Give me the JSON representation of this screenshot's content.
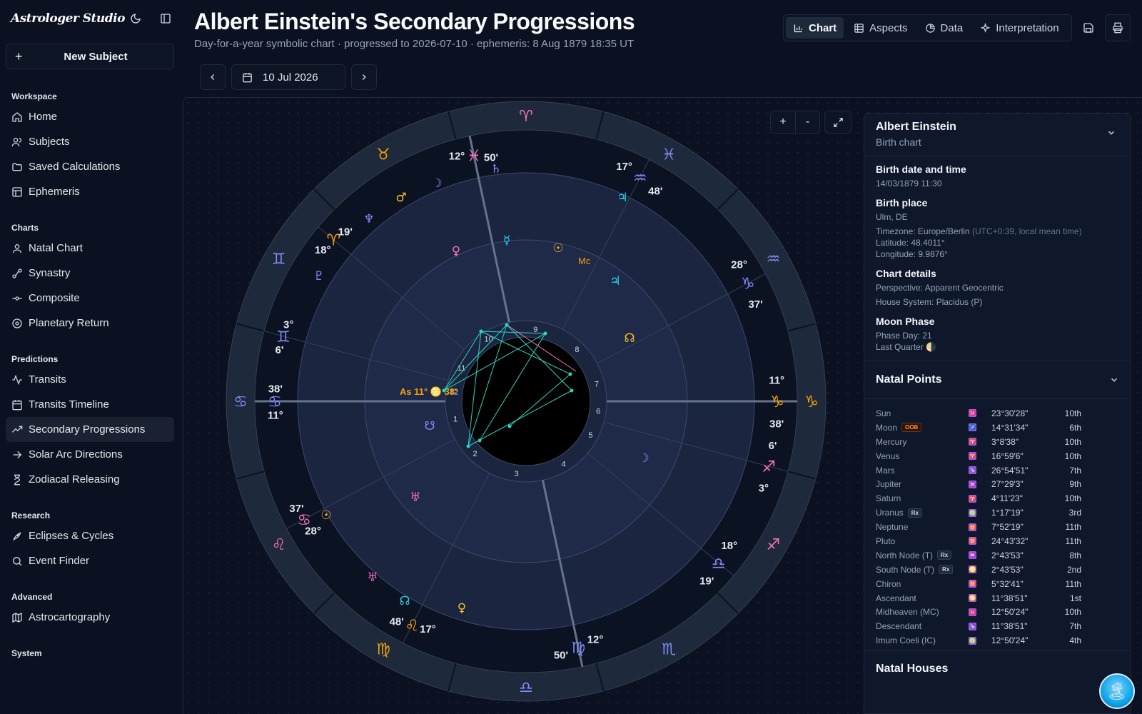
{
  "app": {
    "brand": "Astrologer Studio",
    "new_subject": "New Subject"
  },
  "sidebar": {
    "sections": [
      {
        "title": "Workspace",
        "items": [
          {
            "label": "Home",
            "icon": "home-icon"
          },
          {
            "label": "Subjects",
            "icon": "users-icon"
          },
          {
            "label": "Saved Calculations",
            "icon": "folder-icon"
          },
          {
            "label": "Ephemeris",
            "icon": "table-icon"
          }
        ]
      },
      {
        "title": "Charts",
        "items": [
          {
            "label": "Natal Chart",
            "icon": "user-icon"
          },
          {
            "label": "Synastry",
            "icon": "link-icon"
          },
          {
            "label": "Composite",
            "icon": "merge-icon"
          },
          {
            "label": "Planetary Return",
            "icon": "orbit-icon"
          }
        ]
      },
      {
        "title": "Predictions",
        "items": [
          {
            "label": "Transits",
            "icon": "activity-icon"
          },
          {
            "label": "Transits Timeline",
            "icon": "calendar-icon"
          },
          {
            "label": "Secondary Progressions",
            "icon": "trend-icon",
            "active": true
          },
          {
            "label": "Solar Arc Directions",
            "icon": "arrow-right-icon"
          },
          {
            "label": "Zodiacal Releasing",
            "icon": "hourglass-icon"
          }
        ]
      },
      {
        "title": "Research",
        "items": [
          {
            "label": "Eclipses & Cycles",
            "icon": "rocket-icon"
          },
          {
            "label": "Event Finder",
            "icon": "search-icon"
          }
        ]
      },
      {
        "title": "Advanced",
        "items": [
          {
            "label": "Astrocartography",
            "icon": "map-icon"
          }
        ]
      },
      {
        "title": "System",
        "items": []
      }
    ]
  },
  "header": {
    "title": "Albert Einstein's Secondary Progressions",
    "subtitle": "Day-for-a-year symbolic chart · progressed to 2026-07-10 · ephemeris: 8 Aug 1879 18:35 UT",
    "tabs": [
      {
        "label": "Chart",
        "icon": "bar-chart-icon",
        "active": true
      },
      {
        "label": "Aspects",
        "icon": "grid-icon"
      },
      {
        "label": "Data",
        "icon": "pie-icon"
      },
      {
        "label": "Interpretation",
        "icon": "sparkle-icon"
      }
    ]
  },
  "date_nav": {
    "date": "10 Jul 2026"
  },
  "zoom": {
    "plus": "+",
    "minus": "-"
  },
  "wheel": {
    "zodiac_glyphs": [
      "♈",
      "♉",
      "♊",
      "♋",
      "♌",
      "♍",
      "♎",
      "♏",
      "♐",
      "♑",
      "♒",
      "♓"
    ],
    "cusp_labels": [
      {
        "deg": "11°",
        "sign": "♋",
        "min": "38'"
      },
      {
        "deg": "28°",
        "sign": "♋",
        "min": "37'"
      },
      {
        "deg": "17°",
        "sign": "♌",
        "min": "48'"
      },
      {
        "deg": "12°",
        "sign": "♍",
        "min": "50'"
      },
      {
        "deg": "18°",
        "sign": "♎",
        "min": "19'"
      },
      {
        "deg": "6'",
        "sign": "♐",
        "min": "3°"
      },
      {
        "deg": "11°",
        "sign": "♑",
        "min": "38'"
      },
      {
        "deg": "28°",
        "sign": "♑",
        "min": "37'"
      },
      {
        "deg": "17°",
        "sign": "♒",
        "min": "48'"
      },
      {
        "deg": "12°",
        "sign": "♓",
        "min": "50'"
      },
      {
        "deg": "18°",
        "sign": "♈",
        "min": "19'"
      },
      {
        "deg": "6'",
        "sign": "♊",
        "min": "3°"
      }
    ],
    "house_numbers": [
      "1",
      "2",
      "3",
      "4",
      "5",
      "6",
      "7",
      "8",
      "9",
      "10",
      "11",
      "12"
    ],
    "axis_labels": {
      "asc": "As",
      "asc_deg": "11°",
      "asc_min": "38'",
      "asc_sign": "♋",
      "mc": "Mc"
    }
  },
  "panel": {
    "name": "Albert Einstein",
    "kind": "Birth chart",
    "birth_h": "Birth date and time",
    "birth_v": "14/03/1879 11:30",
    "place_h": "Birth place",
    "place_v": "Ulm, DE",
    "tz": "Timezone: Europe/Berlin",
    "tz_note": "(UTC+0:39, local mean time)",
    "lat": "Latitude: 48.4011°",
    "lon": "Longitude: 9.9876°",
    "details_h": "Chart details",
    "perspective": "Perspective: Apparent Geocentric",
    "house_system": "House System: Placidus (P)",
    "moon_h": "Moon Phase",
    "phase_day": "Phase Day: 21",
    "phase": "Last Quarter 🌗",
    "points_h": "Natal Points",
    "houses_h": "Natal Houses",
    "points": [
      {
        "name": "Sun",
        "sign": "♓",
        "pos": "23°30'28\"",
        "house": "10th"
      },
      {
        "name": "Moon",
        "badge": "OOB",
        "sign": "♐",
        "pos": "14°31'34\"",
        "house": "6th"
      },
      {
        "name": "Mercury",
        "sign": "♈",
        "pos": "3°8'38\"",
        "house": "10th"
      },
      {
        "name": "Venus",
        "sign": "♈",
        "pos": "16°59'6\"",
        "house": "10th"
      },
      {
        "name": "Mars",
        "sign": "♑",
        "pos": "26°54'51\"",
        "house": "7th"
      },
      {
        "name": "Jupiter",
        "sign": "♒",
        "pos": "27°29'3\"",
        "house": "9th"
      },
      {
        "name": "Saturn",
        "sign": "♈",
        "pos": "4°11'23\"",
        "house": "10th"
      },
      {
        "name": "Uranus",
        "badge": "Rx",
        "sign": "♍",
        "pos": "1°17'19\"",
        "house": "3rd"
      },
      {
        "name": "Neptune",
        "sign": "♉",
        "pos": "7°52'19\"",
        "house": "11th"
      },
      {
        "name": "Pluto",
        "sign": "♉",
        "pos": "24°43'32\"",
        "house": "11th"
      },
      {
        "name": "North Node (T)",
        "badge": "Rx",
        "sign": "♒",
        "pos": "2°43'53\"",
        "house": "8th"
      },
      {
        "name": "South Node (T)",
        "badge": "Rx",
        "sign": "♌",
        "pos": "2°43'53\"",
        "house": "2nd"
      },
      {
        "name": "Chiron",
        "sign": "♉",
        "pos": "5°32'41\"",
        "house": "11th"
      },
      {
        "name": "Ascendant",
        "sign": "♋",
        "pos": "11°38'51\"",
        "house": "1st"
      },
      {
        "name": "Midheaven (MC)",
        "sign": "♓",
        "pos": "12°50'24\"",
        "house": "10th"
      },
      {
        "name": "Descendant",
        "sign": "♑",
        "pos": "11°38'51\"",
        "house": "7th"
      },
      {
        "name": "Imum Coeli (IC)",
        "sign": "♍",
        "pos": "12°50'24\"",
        "house": "4th"
      }
    ]
  },
  "colors": {
    "accent": "#22d3ee",
    "aspect": "#2dd4bf",
    "fire": "#f59e0b",
    "water": "#818cf8",
    "pink": "#f472b6"
  }
}
